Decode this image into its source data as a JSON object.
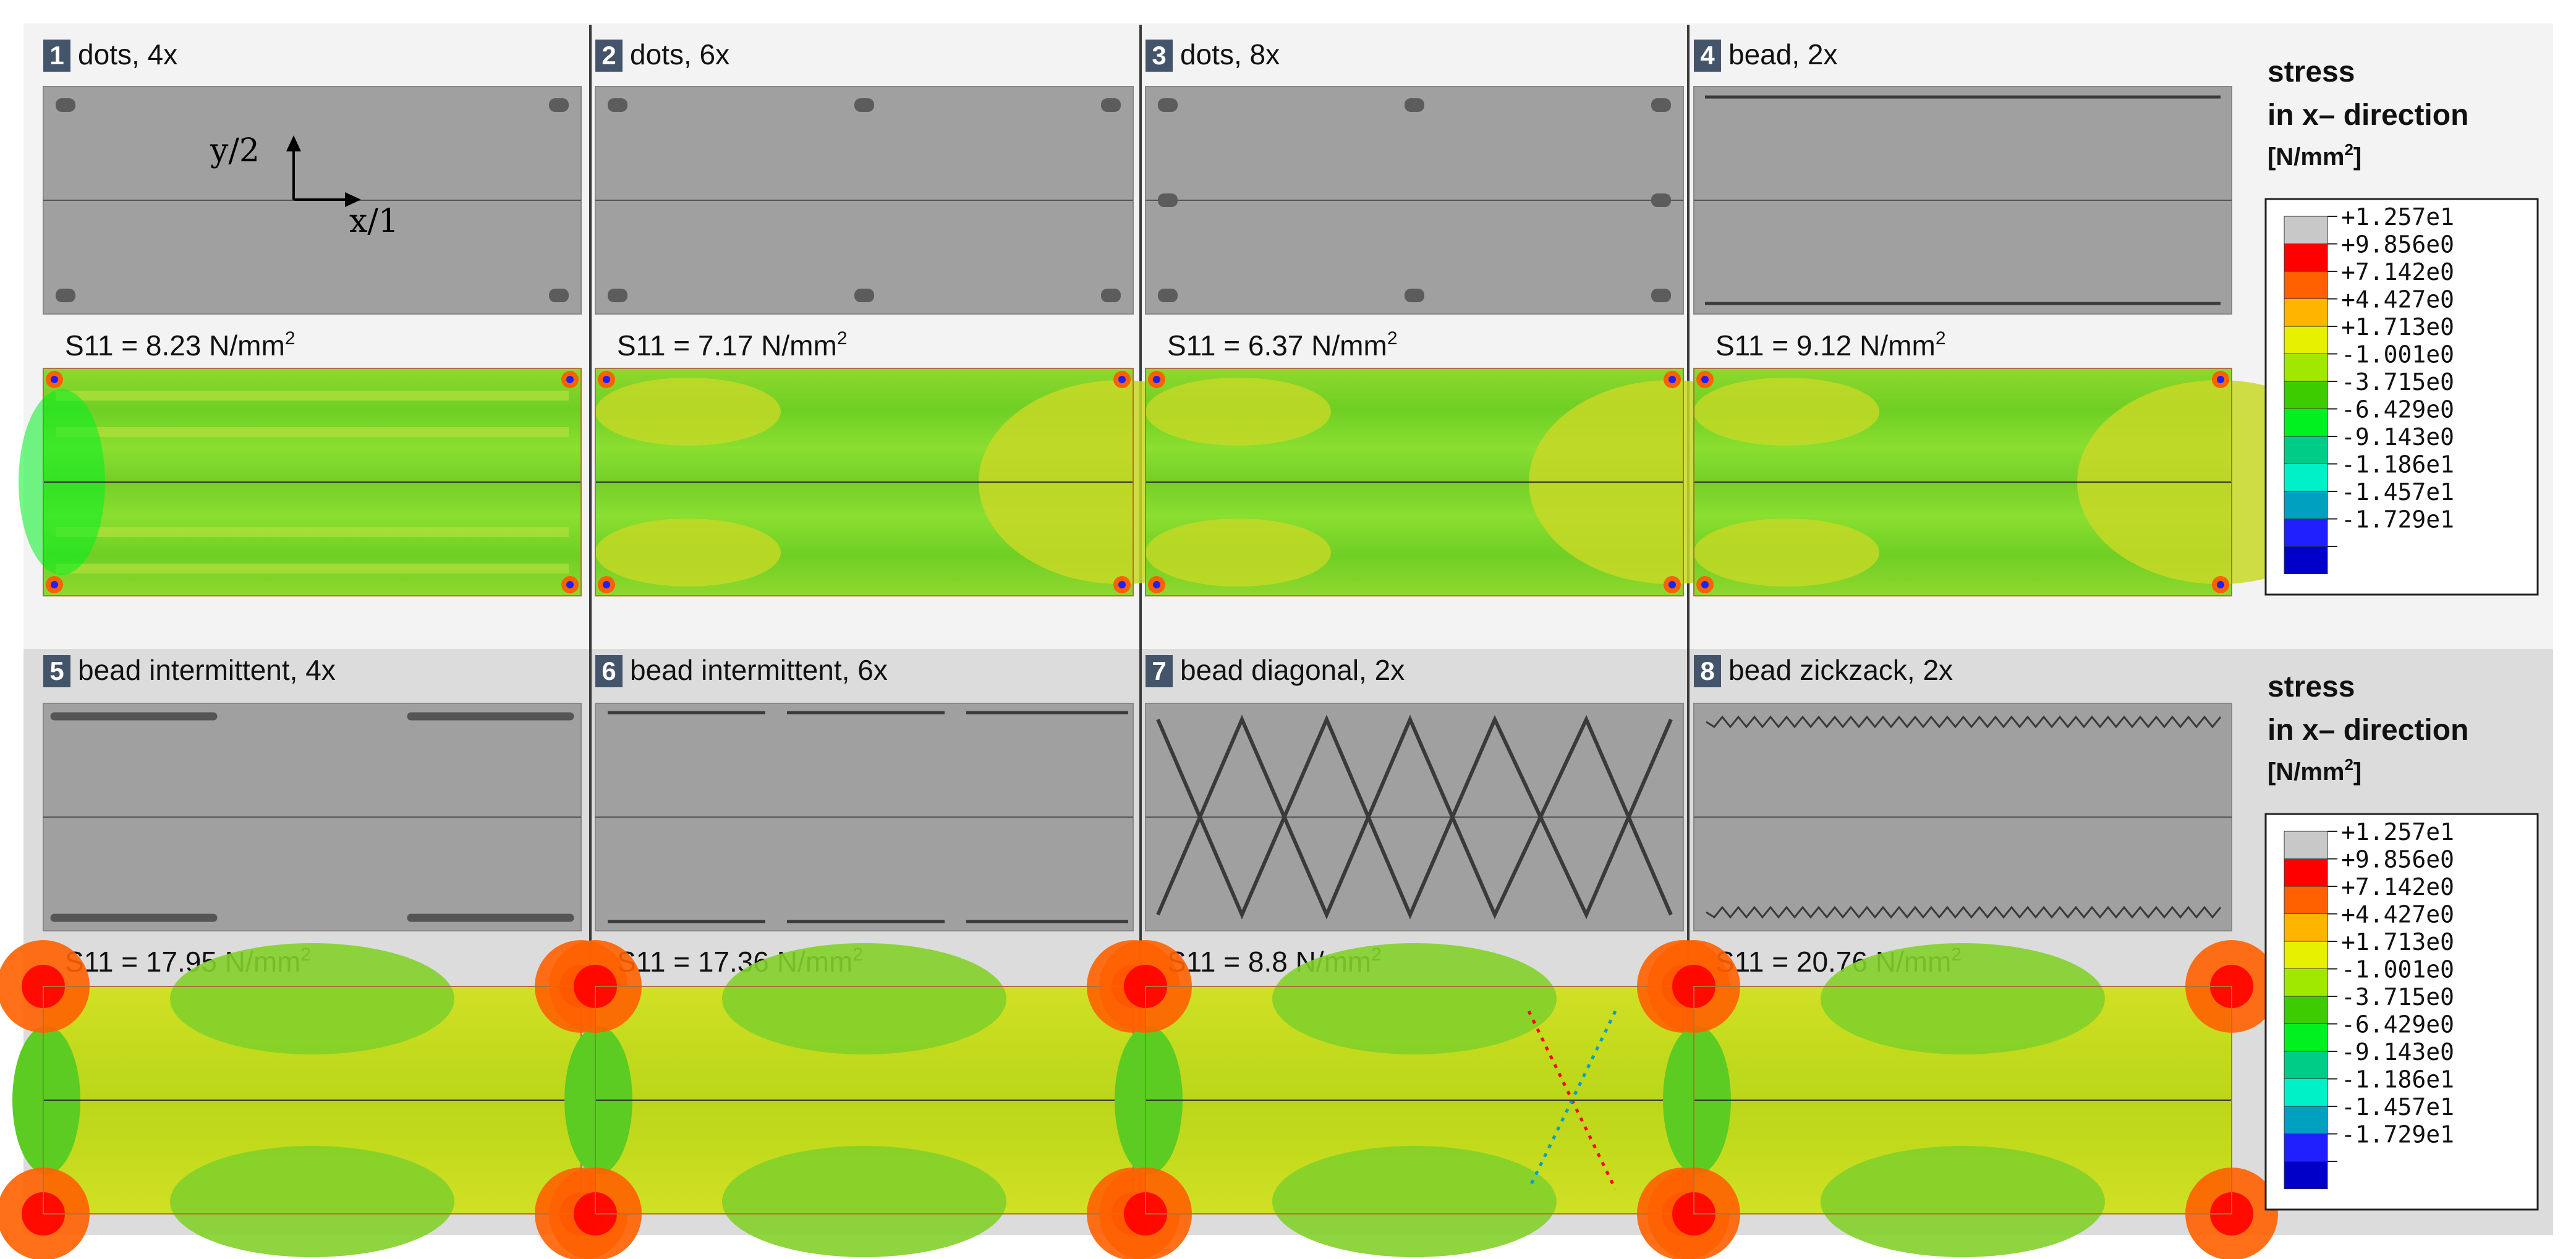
{
  "panels": [
    {
      "num": "1",
      "title": "dots, 4x",
      "result_label": "S11 = 8.23 N/mm",
      "result_exp": "2",
      "pattern": "dots4"
    },
    {
      "num": "2",
      "title": "dots, 6x",
      "result_label": "S11 = 7.17 N/mm",
      "result_exp": "2",
      "pattern": "dots6"
    },
    {
      "num": "3",
      "title": "dots, 8x",
      "result_label": "S11 = 6.37 N/mm",
      "result_exp": "2",
      "pattern": "dots8"
    },
    {
      "num": "4",
      "title": "bead, 2x",
      "result_label": "S11 = 9.12 N/mm",
      "result_exp": "2",
      "pattern": "bead2"
    },
    {
      "num": "5",
      "title": "bead intermittent, 4x",
      "result_label": "S11 = 17.95 N/mm",
      "result_exp": "2",
      "pattern": "inter4"
    },
    {
      "num": "6",
      "title": "bead intermittent, 6x",
      "result_label": "S11 = 17.36 N/mm",
      "result_exp": "2",
      "pattern": "inter6"
    },
    {
      "num": "7",
      "title": "bead diagonal, 2x",
      "result_label": "S11 = 8.8 N/mm",
      "result_exp": "2",
      "pattern": "diagonal"
    },
    {
      "num": "8",
      "title": "bead zickzack, 2x",
      "result_label": "S11 = 20.76 N/mm",
      "result_exp": "2",
      "pattern": "zigzag"
    }
  ],
  "axes": {
    "y_label": "y/2",
    "x_label": "x/1"
  },
  "legend": {
    "title_line1": "stress",
    "title_line2": "in x– direction",
    "unit": "[N/mm",
    "unit_exp": "2",
    "unit_close": "]",
    "entries": [
      {
        "value": "+1.257e1",
        "color": "#c8c8c8"
      },
      {
        "value": "+9.856e0",
        "color": "#ff0000"
      },
      {
        "value": "+7.142e0",
        "color": "#ff6000"
      },
      {
        "value": "+4.427e0",
        "color": "#ffb400"
      },
      {
        "value": "+1.713e0",
        "color": "#e6f000"
      },
      {
        "value": "-1.001e0",
        "color": "#a0e800"
      },
      {
        "value": "-3.715e0",
        "color": "#3ccc00"
      },
      {
        "value": "-6.429e0",
        "color": "#00f020"
      },
      {
        "value": "-9.143e0",
        "color": "#00cc88"
      },
      {
        "value": "-1.186e1",
        "color": "#00f0c8"
      },
      {
        "value": "-1.457e1",
        "color": "#00a0c0"
      },
      {
        "value": "-1.729e1",
        "color": "#2020ff"
      },
      {
        "value": "",
        "color": "#0000c8"
      }
    ]
  }
}
